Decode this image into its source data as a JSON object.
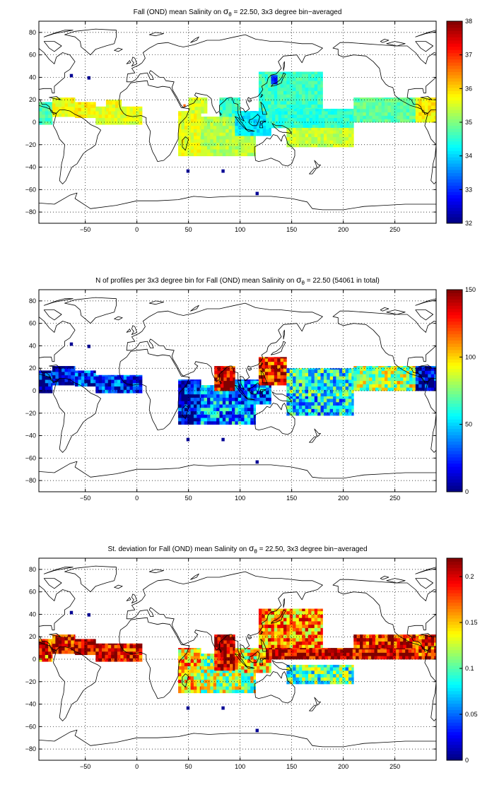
{
  "panels": [
    {
      "title_pre": "Fall (OND) mean Salinity on ",
      "title_sigma": "σ",
      "title_sub": "θ",
      "title_post": " = 22.50, 3x3 degree bin−averaged",
      "colorbar_ticks": [
        "32",
        "33",
        "34",
        "35",
        "36",
        "37",
        "38"
      ],
      "colormap": "jet",
      "field": "salinity"
    },
    {
      "title_pre": "N of profiles per 3x3 degree bin for Fall (OND) mean Salinity on ",
      "title_sigma": "σ",
      "title_sub": "θ",
      "title_post": " = 22.50 (54061 in total)",
      "colorbar_ticks": [
        "0",
        "50",
        "100",
        "150"
      ],
      "colormap": "jet",
      "field": "count"
    },
    {
      "title_pre": "St. deviation for Fall (OND) mean Salinity on ",
      "title_sigma": "σ",
      "title_sub": "θ",
      "title_post": " = 22.50, 3x3 degree bin−averaged",
      "colorbar_ticks": [
        "0",
        "0.05",
        "0.1",
        "0.15",
        "0.2"
      ],
      "colormap": "jet",
      "field": "stdev"
    }
  ],
  "chart_data": [
    {
      "type": "heatmap",
      "title": "Fall (OND) mean Salinity on σθ = 22.50, 3x3 degree bin−averaged",
      "x_ticks": [
        -50,
        0,
        50,
        100,
        150,
        200,
        250
      ],
      "y_ticks": [
        -80,
        -60,
        -40,
        -20,
        0,
        20,
        40,
        60,
        80
      ],
      "xlim": [
        -95,
        290
      ],
      "ylim": [
        -90,
        90
      ],
      "clim": [
        32,
        38
      ],
      "grid": true,
      "colorbar": "right",
      "regions": [
        {
          "x": [
            -95,
            -82
          ],
          "y": [
            -2,
            18
          ],
          "value": 34.7
        },
        {
          "x": [
            -82,
            -60
          ],
          "y": [
            5,
            22
          ],
          "value": 35.7
        },
        {
          "x": [
            -60,
            -40
          ],
          "y": [
            4,
            18
          ],
          "value": 35.8
        },
        {
          "x": [
            -40,
            5
          ],
          "y": [
            -2,
            14
          ],
          "value": 35.6
        },
        {
          "x": [
            -30,
            -15
          ],
          "y": [
            10,
            20
          ],
          "value": 35.7
        },
        {
          "x": [
            40,
            62
          ],
          "y": [
            -30,
            10
          ],
          "value": 35.6
        },
        {
          "x": [
            50,
            68
          ],
          "y": [
            8,
            22
          ],
          "value": 35.5
        },
        {
          "x": [
            62,
            115
          ],
          "y": [
            -30,
            5
          ],
          "value": 35.3
        },
        {
          "x": [
            80,
            100
          ],
          "y": [
            5,
            22
          ],
          "value": 34.6
        },
        {
          "x": [
            95,
            130
          ],
          "y": [
            -12,
            10
          ],
          "value": 34.1
        },
        {
          "x": [
            118,
            180
          ],
          "y": [
            10,
            45
          ],
          "value": 34.6
        },
        {
          "x": [
            125,
            210
          ],
          "y": [
            -5,
            12
          ],
          "value": 34.5
        },
        {
          "x": [
            145,
            210
          ],
          "y": [
            -22,
            -5
          ],
          "value": 35.4
        },
        {
          "x": [
            210,
            270
          ],
          "y": [
            0,
            22
          ],
          "value": 34.8
        },
        {
          "x": [
            270,
            290
          ],
          "y": [
            0,
            22
          ],
          "value": 35.8
        },
        {
          "x": [
            45,
            47
          ],
          "y": [
            14,
            16
          ],
          "value": 36.6
        },
        {
          "x": [
            130,
            136
          ],
          "y": [
            34,
            42
          ],
          "value": 33.0
        }
      ]
    },
    {
      "type": "heatmap",
      "title": "N of profiles per 3x3 degree bin for Fall (OND) mean Salinity on σθ = 22.50 (54061 in total)",
      "x_ticks": [
        -50,
        0,
        50,
        100,
        150,
        200,
        250
      ],
      "y_ticks": [
        -80,
        -60,
        -40,
        -20,
        0,
        20,
        40,
        60,
        80
      ],
      "xlim": [
        -95,
        290
      ],
      "ylim": [
        -90,
        90
      ],
      "clim": [
        0,
        150
      ],
      "grid": true,
      "colorbar": "right",
      "total_profiles": 54061,
      "regions": [
        {
          "x": [
            -95,
            -82
          ],
          "y": [
            -2,
            18
          ],
          "value": 15
        },
        {
          "x": [
            -82,
            -60
          ],
          "y": [
            5,
            22
          ],
          "value": 10
        },
        {
          "x": [
            -60,
            -40
          ],
          "y": [
            4,
            18
          ],
          "value": 25
        },
        {
          "x": [
            -40,
            5
          ],
          "y": [
            -2,
            14
          ],
          "value": 20
        },
        {
          "x": [
            40,
            62
          ],
          "y": [
            -30,
            10
          ],
          "value": 15
        },
        {
          "x": [
            62,
            115
          ],
          "y": [
            -30,
            5
          ],
          "value": 40
        },
        {
          "x": [
            75,
            95
          ],
          "y": [
            0,
            22
          ],
          "value": 140
        },
        {
          "x": [
            95,
            130
          ],
          "y": [
            -12,
            10
          ],
          "value": 30
        },
        {
          "x": [
            118,
            145
          ],
          "y": [
            5,
            30
          ],
          "value": 130
        },
        {
          "x": [
            145,
            210
          ],
          "y": [
            -5,
            20
          ],
          "value": 60
        },
        {
          "x": [
            145,
            210
          ],
          "y": [
            -22,
            -5
          ],
          "value": 50
        },
        {
          "x": [
            210,
            270
          ],
          "y": [
            0,
            22
          ],
          "value": 80
        },
        {
          "x": [
            270,
            290
          ],
          "y": [
            0,
            22
          ],
          "value": 10
        }
      ]
    },
    {
      "type": "heatmap",
      "title": "St. deviation for Fall (OND) mean Salinity on σθ = 22.50, 3x3 degree bin−averaged",
      "x_ticks": [
        -50,
        0,
        50,
        100,
        150,
        200,
        250
      ],
      "y_ticks": [
        -80,
        -60,
        -40,
        -20,
        0,
        20,
        40,
        60,
        80
      ],
      "xlim": [
        -95,
        290
      ],
      "ylim": [
        -90,
        90
      ],
      "clim": [
        0,
        0.22
      ],
      "grid": true,
      "colorbar": "right",
      "regions": [
        {
          "x": [
            -95,
            -82
          ],
          "y": [
            -2,
            18
          ],
          "value": 0.18
        },
        {
          "x": [
            -82,
            -60
          ],
          "y": [
            5,
            22
          ],
          "value": 0.2
        },
        {
          "x": [
            -60,
            -40
          ],
          "y": [
            4,
            18
          ],
          "value": 0.21
        },
        {
          "x": [
            -40,
            5
          ],
          "y": [
            -2,
            14
          ],
          "value": 0.2
        },
        {
          "x": [
            40,
            62
          ],
          "y": [
            -30,
            10
          ],
          "value": 0.15
        },
        {
          "x": [
            62,
            115
          ],
          "y": [
            -30,
            5
          ],
          "value": 0.12
        },
        {
          "x": [
            75,
            95
          ],
          "y": [
            -10,
            22
          ],
          "value": 0.21
        },
        {
          "x": [
            95,
            130
          ],
          "y": [
            -12,
            10
          ],
          "value": 0.14
        },
        {
          "x": [
            118,
            180
          ],
          "y": [
            10,
            45
          ],
          "value": 0.16
        },
        {
          "x": [
            125,
            270
          ],
          "y": [
            0,
            10
          ],
          "value": 0.21
        },
        {
          "x": [
            145,
            210
          ],
          "y": [
            -22,
            -5
          ],
          "value": 0.1
        },
        {
          "x": [
            210,
            270
          ],
          "y": [
            10,
            22
          ],
          "value": 0.19
        },
        {
          "x": [
            270,
            290
          ],
          "y": [
            0,
            22
          ],
          "value": 0.19
        }
      ]
    }
  ]
}
